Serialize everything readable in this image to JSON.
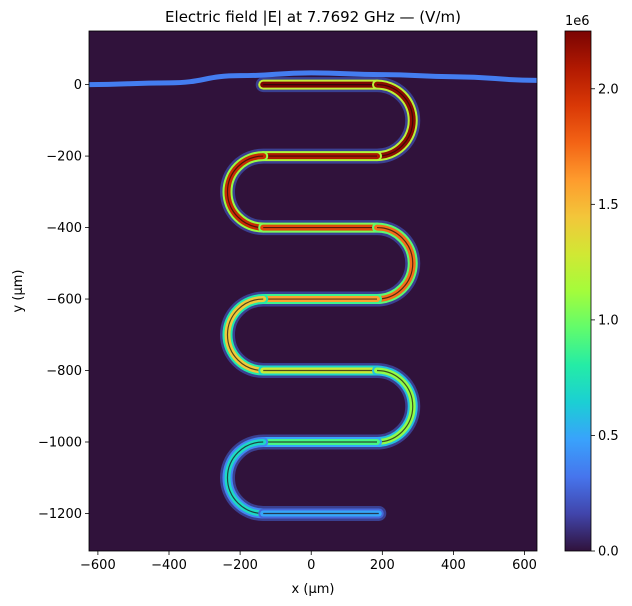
{
  "chart_data": {
    "type": "heatmap",
    "title": "Electric field |E| at 7.7692 GHz — (V/m)",
    "xlabel": "x (µm)",
    "ylabel": "y (µm)",
    "xlim": [
      -625,
      635
    ],
    "ylim": [
      -1305,
      150
    ],
    "xticks": [
      -600,
      -400,
      -200,
      0,
      200,
      400,
      600
    ],
    "xtick_labels": [
      "−600",
      "−400",
      "−200",
      "0",
      "200",
      "400",
      "600"
    ],
    "yticks": [
      0,
      -200,
      -400,
      -600,
      -800,
      -1000,
      -1200
    ],
    "ytick_labels": [
      "0",
      "−200",
      "−400",
      "−600",
      "−800",
      "−1000",
      "−1200"
    ],
    "colorbar": {
      "range": [
        0,
        2250000
      ],
      "ticks": [
        0.0,
        0.5,
        1.0,
        1.5,
        2.0
      ],
      "tick_labels": [
        "0.0",
        "0.5",
        "1.0",
        "1.5",
        "2.0"
      ],
      "exponent_label": "1e6",
      "colormap": "turbo"
    },
    "feedline": {
      "field": 350000,
      "points": [
        [
          -625,
          0
        ],
        [
          -400,
          5
        ],
        [
          -200,
          25
        ],
        [
          0,
          33
        ],
        [
          200,
          28
        ],
        [
          400,
          22
        ],
        [
          635,
          12
        ]
      ]
    },
    "resonator": {
      "field_start": 2250000,
      "field_end": 500000,
      "y_centers": [
        0,
        -200,
        -400,
        -600,
        -800,
        -1000,
        -1200
      ],
      "x_left": -135,
      "x_right": 185,
      "bend_radius": 100,
      "x_end": 190,
      "start_side": "left"
    },
    "background_field": 0,
    "grid": false
  },
  "colors": {
    "background": "#30123b",
    "colormap_stops": [
      "#30123b",
      "#4145ab",
      "#4675ed",
      "#39a2fc",
      "#1bcfd4",
      "#24eca6",
      "#61fc6c",
      "#a4fc3b",
      "#d1e834",
      "#f3c63a",
      "#fe9b2d",
      "#f36315",
      "#d93806",
      "#b11901",
      "#7a0403"
    ]
  }
}
